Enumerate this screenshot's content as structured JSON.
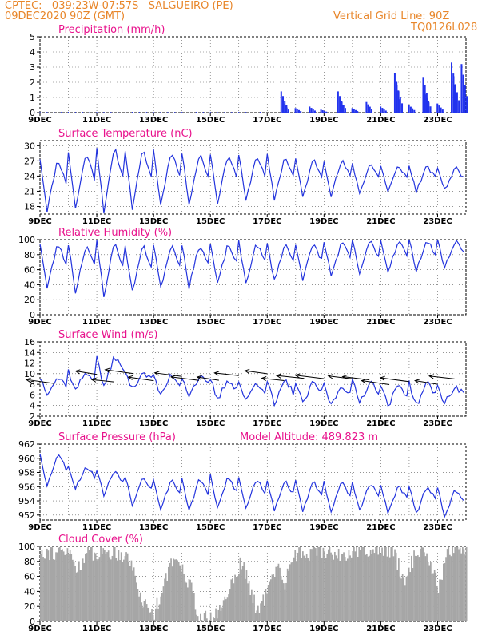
{
  "header": {
    "line1": "CPTEC:   039:23W-07:57S   SALGUEIRO (PE)",
    "line2": "09DEC2020 90Z (GMT)",
    "grid_note": "Vertical Grid Line: 90Z",
    "code": "TQ0126L028"
  },
  "x_ticks": [
    "9DEC",
    "11DEC",
    "13DEC",
    "15DEC",
    "17DEC",
    "19DEC",
    "21DEC",
    "23DEC"
  ],
  "colors": {
    "line": "#2233dd",
    "bar": "#2233ee",
    "cloud": "#a6a6a6",
    "title": "#e8128c",
    "header": "#e8862a",
    "arrow": "#000000"
  },
  "chart_data": [
    {
      "type": "bar",
      "title": "Precipitation (mm/h)",
      "ylim": [
        0,
        5
      ],
      "yticks": [
        0,
        1,
        2,
        3,
        4,
        5
      ],
      "x_range_days": [
        9,
        24
      ],
      "spikes": [
        {
          "day": 17.55,
          "value": 1.4
        },
        {
          "day": 17.62,
          "value": 0.6
        },
        {
          "day": 18.05,
          "value": 0.3
        },
        {
          "day": 18.55,
          "value": 0.4
        },
        {
          "day": 18.95,
          "value": 0.2
        },
        {
          "day": 19.55,
          "value": 1.4
        },
        {
          "day": 19.62,
          "value": 0.9
        },
        {
          "day": 20.05,
          "value": 0.3
        },
        {
          "day": 20.55,
          "value": 0.7
        },
        {
          "day": 21.05,
          "value": 0.4
        },
        {
          "day": 21.55,
          "value": 2.6
        },
        {
          "day": 21.62,
          "value": 1.8
        },
        {
          "day": 22.05,
          "value": 0.5
        },
        {
          "day": 22.55,
          "value": 2.3
        },
        {
          "day": 22.62,
          "value": 1.2
        },
        {
          "day": 23.05,
          "value": 0.6
        },
        {
          "day": 23.55,
          "value": 3.3
        },
        {
          "day": 23.62,
          "value": 2.4
        },
        {
          "day": 23.9,
          "value": 3.2
        }
      ]
    },
    {
      "type": "line",
      "title": "Surface Temperature (nC)",
      "ylim": [
        16.5,
        31
      ],
      "yticks": [
        18,
        21,
        24,
        27,
        30
      ],
      "x_range_days": [
        9,
        24
      ],
      "daily_max": [
        27.5,
        28.8,
        29.7,
        29.3,
        29.2,
        28.6,
        28.5,
        28.3,
        28.0,
        27.5,
        27.2,
        26.6,
        26.2,
        26.0,
        25.8
      ],
      "daily_min": [
        17.2,
        17.5,
        17.0,
        17.6,
        18.2,
        18.6,
        18.7,
        19.0,
        19.4,
        19.8,
        20.2,
        20.6,
        20.8,
        21.0,
        21.2
      ]
    },
    {
      "type": "line",
      "title": "Relative Humidity (%)",
      "ylim": [
        0,
        100
      ],
      "yticks": [
        0,
        20,
        40,
        60,
        80,
        100
      ],
      "x_range_days": [
        9,
        24
      ],
      "daily_max": [
        96,
        95,
        98,
        93,
        95,
        95,
        95,
        96,
        95,
        95,
        97,
        99,
        99,
        99,
        100
      ],
      "daily_min": [
        35,
        30,
        25,
        30,
        35,
        37,
        40,
        42,
        45,
        48,
        52,
        55,
        58,
        60,
        62
      ]
    },
    {
      "type": "line",
      "title": "Surface Wind (m/s)",
      "ylim": [
        2,
        16
      ],
      "yticks": [
        2,
        4,
        6,
        8,
        10,
        12,
        14,
        16
      ],
      "x_range_days": [
        9,
        24
      ],
      "daily_max": [
        9.3,
        10.5,
        13.5,
        10.5,
        10.0,
        9.5,
        9.0,
        8.5,
        8.7,
        8.4,
        8.0,
        8.6,
        8.0,
        8.3,
        7.5
      ],
      "daily_min": [
        6.5,
        6.8,
        7.2,
        7.0,
        5.6,
        6.0,
        5.0,
        4.8,
        4.0,
        4.3,
        4.0,
        4.6,
        3.8,
        4.0,
        4.6
      ],
      "wind_arrow_days": [
        9.5,
        11.0,
        11.6,
        12.3,
        13.0,
        14.0,
        14.6,
        15.3,
        16.0,
        17.0,
        17.6,
        18.3,
        19.0,
        20.0,
        20.6,
        21.3,
        22.0,
        23.0,
        23.6
      ]
    },
    {
      "type": "line",
      "title": "Surface Pressure (hPa)",
      "annotation": "Model Altitude: 489.823 m",
      "ylim": [
        951.3,
        962
      ],
      "yticks": [
        952,
        954,
        956,
        958,
        960,
        962
      ],
      "x_range_days": [
        9,
        24
      ],
      "daily_max": [
        960.8,
        958.9,
        958.4,
        957.6,
        957.2,
        957.2,
        957.5,
        957.2,
        956.9,
        956.7,
        956.6,
        956.5,
        956.2,
        956.1,
        955.6
      ],
      "daily_min": [
        956.0,
        955.8,
        954.8,
        953.4,
        952.6,
        952.6,
        952.8,
        952.9,
        952.8,
        952.7,
        952.6,
        952.7,
        952.2,
        952.1,
        952.0
      ]
    },
    {
      "type": "bar",
      "title": "Cloud Cover (%)",
      "ylim": [
        0,
        100
      ],
      "yticks": [
        0,
        20,
        40,
        60,
        80,
        100
      ],
      "x_range_days": [
        9,
        24
      ],
      "profile": [
        {
          "day": 9.0,
          "value": 95
        },
        {
          "day": 9.4,
          "value": 92
        },
        {
          "day": 10.0,
          "value": 92
        },
        {
          "day": 10.3,
          "value": 70
        },
        {
          "day": 10.6,
          "value": 90
        },
        {
          "day": 11.0,
          "value": 92
        },
        {
          "day": 11.5,
          "value": 93
        },
        {
          "day": 12.1,
          "value": 88
        },
        {
          "day": 12.6,
          "value": 25
        },
        {
          "day": 13.0,
          "value": 10
        },
        {
          "day": 13.4,
          "value": 60
        },
        {
          "day": 13.8,
          "value": 88
        },
        {
          "day": 14.3,
          "value": 45
        },
        {
          "day": 14.6,
          "value": 5
        },
        {
          "day": 15.0,
          "value": 3
        },
        {
          "day": 15.4,
          "value": 20
        },
        {
          "day": 15.8,
          "value": 60
        },
        {
          "day": 16.1,
          "value": 80
        },
        {
          "day": 16.4,
          "value": 40
        },
        {
          "day": 16.6,
          "value": 15
        },
        {
          "day": 16.9,
          "value": 30
        },
        {
          "day": 17.3,
          "value": 75
        },
        {
          "day": 17.6,
          "value": 50
        },
        {
          "day": 17.9,
          "value": 92
        },
        {
          "day": 18.3,
          "value": 90
        },
        {
          "day": 18.7,
          "value": 95
        },
        {
          "day": 19.2,
          "value": 93
        },
        {
          "day": 19.6,
          "value": 88
        },
        {
          "day": 20.2,
          "value": 96
        },
        {
          "day": 20.8,
          "value": 98
        },
        {
          "day": 21.4,
          "value": 95
        },
        {
          "day": 21.8,
          "value": 55
        },
        {
          "day": 22.2,
          "value": 90
        },
        {
          "day": 22.6,
          "value": 93
        },
        {
          "day": 23.0,
          "value": 45
        },
        {
          "day": 23.4,
          "value": 97
        },
        {
          "day": 24.0,
          "value": 98
        }
      ]
    }
  ]
}
